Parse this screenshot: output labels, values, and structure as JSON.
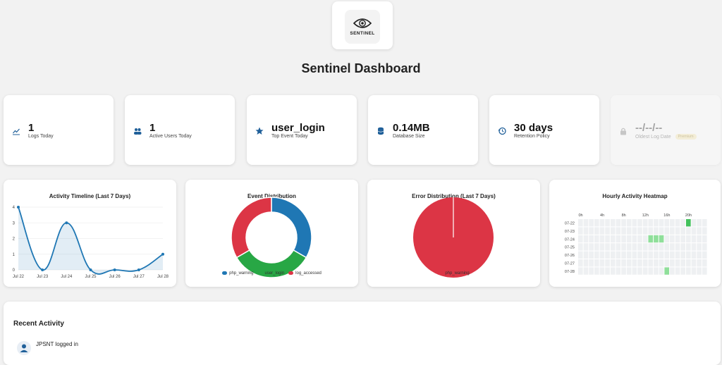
{
  "logo": {
    "text": "SENTINEL"
  },
  "page": {
    "title": "Sentinel Dashboard"
  },
  "stats": [
    {
      "value": "1",
      "label": "Logs Today",
      "icon": "chart-line-icon"
    },
    {
      "value": "1",
      "label": "Active Users Today",
      "icon": "users-icon"
    },
    {
      "value": "user_login",
      "label": "Top Event Today",
      "icon": "star-icon"
    },
    {
      "value": "0.14MB",
      "label": "Database Size",
      "icon": "database-icon"
    },
    {
      "value": "30 days",
      "label": "Retention Policy",
      "icon": "history-icon"
    },
    {
      "value": "--/--/--",
      "label": "Oldest Log Date",
      "badge": "Premium",
      "icon": "lock-icon"
    }
  ],
  "colors": {
    "accent": "#1f77b4",
    "green": "#28a745",
    "red": "#dc3545",
    "heat": "#8fdf9a",
    "heat_strong": "#43c15c"
  },
  "chart_data": [
    {
      "type": "line",
      "title": "Activity Timeline (Last 7 Days)",
      "categories": [
        "Jul 22",
        "Jul 23",
        "Jul 24",
        "Jul 25",
        "Jul 26",
        "Jul 27",
        "Jul 28"
      ],
      "values": [
        4,
        0,
        3,
        0,
        0,
        0,
        1
      ],
      "ylim": [
        0,
        4
      ],
      "yticks": [
        "0",
        "1",
        "2",
        "3",
        "4"
      ]
    },
    {
      "type": "pie",
      "title": "Event Distribution",
      "categories": [
        "php_warning",
        "user_login",
        "log_accessed"
      ],
      "values": [
        1,
        1,
        1
      ]
    },
    {
      "type": "pie",
      "title": "Error Distribution (Last 7 Days)",
      "categories": [
        "php_warning"
      ],
      "values": [
        1
      ]
    },
    {
      "type": "heatmap",
      "title": "Hourly Activity Heatmap",
      "x_ticks": [
        "0h",
        "4h",
        "8h",
        "12h",
        "16h",
        "20h"
      ],
      "rows": [
        "07-22",
        "07-23",
        "07-24",
        "07-25",
        "07-26",
        "07-27",
        "07-28"
      ],
      "cells": [
        {
          "row": "07-22",
          "hour": 20,
          "level": 2
        },
        {
          "row": "07-24",
          "hour": 13,
          "level": 1
        },
        {
          "row": "07-24",
          "hour": 14,
          "level": 1
        },
        {
          "row": "07-24",
          "hour": 15,
          "level": 1
        },
        {
          "row": "07-28",
          "hour": 16,
          "level": 1
        }
      ]
    }
  ],
  "recent": {
    "title": "Recent Activity",
    "items": [
      {
        "text": "JPSNT logged in"
      }
    ]
  }
}
